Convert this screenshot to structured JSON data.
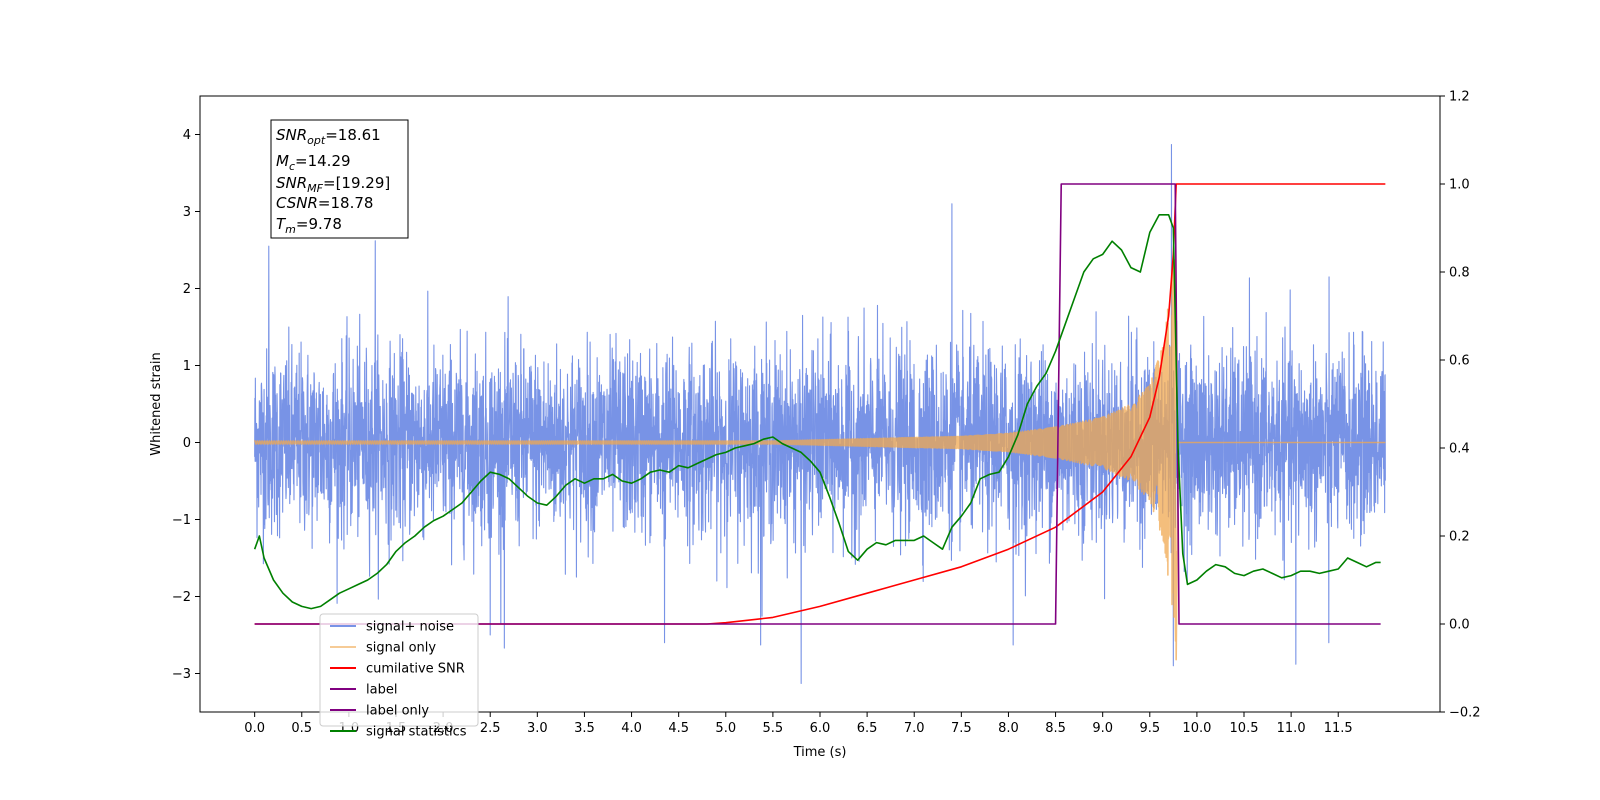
{
  "chart_data": {
    "type": "line",
    "xlabel": "Time (s)",
    "ylabel": "Whitened strain",
    "xlim": [
      -0.58,
      12.58
    ],
    "ylim": [
      -3.5,
      4.5
    ],
    "y2lim": [
      -0.2,
      1.2
    ],
    "x_ticks": [
      0.0,
      0.5,
      1.0,
      1.5,
      2.0,
      2.5,
      3.0,
      3.5,
      4.0,
      4.5,
      5.0,
      5.5,
      6.0,
      6.5,
      7.0,
      7.5,
      8.0,
      8.5,
      9.0,
      9.5,
      10.0,
      10.5,
      11.0,
      11.5
    ],
    "x_tick_labels": [
      "0.0",
      "0.5",
      "1.0",
      "1.5",
      "2.0",
      "2.5",
      "3.0",
      "3.5",
      "4.0",
      "4.5",
      "5.0",
      "5.5",
      "6.0",
      "6.5",
      "7.0",
      "7.5",
      "8.0",
      "8.5",
      "9.0",
      "9.5",
      "10.0",
      "10.5",
      "11.0",
      "11.5"
    ],
    "y_ticks": [
      -3,
      -2,
      -1,
      0,
      1,
      2,
      3,
      4
    ],
    "y_tick_labels": [
      "−3",
      "−2",
      "−1",
      "0",
      "1",
      "2",
      "3",
      "4"
    ],
    "y2_ticks": [
      -0.2,
      0.0,
      0.2,
      0.4,
      0.6,
      0.8,
      1.0,
      1.2
    ],
    "y2_tick_labels": [
      "−0.2",
      "0.0",
      "0.2",
      "0.4",
      "0.6",
      "0.8",
      "1.0",
      "1.2"
    ],
    "legend_position": "lower-left",
    "grid": false,
    "annotation": [
      {
        "base": "SNR",
        "sub": "opt",
        "value": "=18.61"
      },
      {
        "base": "M",
        "sub": "c",
        "value": "=14.29"
      },
      {
        "base": "SNR",
        "sub": "MF",
        "value": "=[19.29]"
      },
      {
        "base": "CSNR",
        "sub": "",
        "value": "=18.78"
      },
      {
        "base": "T",
        "sub": "m",
        "value": "=9.78"
      }
    ],
    "series": [
      {
        "name": "signal+ noise",
        "color": "#7893e6",
        "axis": "left",
        "kind": "noise",
        "x_range": [
          0.0,
          12.0
        ],
        "typical_amplitude": 1.0,
        "extremes": [
          {
            "x": 0.15,
            "y": 2.55
          },
          {
            "x": 1.28,
            "y": 2.62
          },
          {
            "x": 2.5,
            "y": -2.5
          },
          {
            "x": 2.65,
            "y": -2.67
          },
          {
            "x": 4.35,
            "y": -2.6
          },
          {
            "x": 5.37,
            "y": -2.63
          },
          {
            "x": 5.8,
            "y": -3.13
          },
          {
            "x": 7.4,
            "y": 3.1
          },
          {
            "x": 8.05,
            "y": -2.63
          },
          {
            "x": 9.73,
            "y": 3.87
          },
          {
            "x": 9.75,
            "y": -2.9
          },
          {
            "x": 11.05,
            "y": -2.88
          },
          {
            "x": 11.4,
            "y": -2.6
          }
        ]
      },
      {
        "name": "signal only",
        "color": "#f0a850",
        "axis": "left",
        "kind": "chirp",
        "merger_time": 9.78,
        "envelope": [
          {
            "x": 5.5,
            "y": 0.02
          },
          {
            "x": 6.5,
            "y": 0.05
          },
          {
            "x": 7.5,
            "y": 0.08
          },
          {
            "x": 8.0,
            "y": 0.12
          },
          {
            "x": 8.5,
            "y": 0.2
          },
          {
            "x": 9.0,
            "y": 0.33
          },
          {
            "x": 9.3,
            "y": 0.5
          },
          {
            "x": 9.5,
            "y": 0.75
          },
          {
            "x": 9.65,
            "y": 1.3
          },
          {
            "x": 9.75,
            "y": 2.4
          },
          {
            "x": 9.78,
            "y": 2.8
          }
        ],
        "min_value": -2.82
      },
      {
        "name": "cumilative SNR",
        "color": "#ff0000",
        "axis": "right",
        "x": [
          0.0,
          4.8,
          5.0,
          5.5,
          6.0,
          6.5,
          7.0,
          7.5,
          8.0,
          8.5,
          9.0,
          9.3,
          9.5,
          9.6,
          9.7,
          9.75,
          9.78,
          9.79,
          12.0
        ],
        "y": [
          0.0,
          0.0,
          0.003,
          0.015,
          0.04,
          0.07,
          0.1,
          0.13,
          0.17,
          0.22,
          0.3,
          0.38,
          0.47,
          0.56,
          0.7,
          0.84,
          1.0,
          1.0,
          1.0
        ]
      },
      {
        "name": "label",
        "color": "#800080",
        "axis": "right",
        "x": [
          0.0,
          8.5,
          8.56,
          9.77,
          9.81,
          11.95
        ],
        "y": [
          0.0,
          0.0,
          1.0,
          1.0,
          0.0,
          0.0
        ]
      },
      {
        "name": "label only",
        "color": "#800080",
        "axis": "right",
        "hidden_in_plot": true
      },
      {
        "name": "signal statistics",
        "color": "#008000",
        "axis": "right",
        "x": [
          0.0,
          0.05,
          0.1,
          0.2,
          0.3,
          0.4,
          0.5,
          0.6,
          0.7,
          0.8,
          0.9,
          1.0,
          1.1,
          1.2,
          1.3,
          1.4,
          1.5,
          1.6,
          1.7,
          1.8,
          1.9,
          2.0,
          2.1,
          2.2,
          2.3,
          2.4,
          2.5,
          2.6,
          2.7,
          2.8,
          2.9,
          3.0,
          3.1,
          3.2,
          3.3,
          3.4,
          3.5,
          3.6,
          3.7,
          3.8,
          3.9,
          4.0,
          4.1,
          4.2,
          4.3,
          4.4,
          4.5,
          4.6,
          4.7,
          4.8,
          4.9,
          5.0,
          5.1,
          5.2,
          5.3,
          5.4,
          5.5,
          5.6,
          5.7,
          5.8,
          5.9,
          6.0,
          6.1,
          6.2,
          6.3,
          6.4,
          6.5,
          6.6,
          6.7,
          6.8,
          6.9,
          7.0,
          7.1,
          7.2,
          7.3,
          7.4,
          7.5,
          7.6,
          7.7,
          7.8,
          7.9,
          8.0,
          8.1,
          8.2,
          8.3,
          8.4,
          8.5,
          8.6,
          8.7,
          8.8,
          8.9,
          9.0,
          9.1,
          9.2,
          9.3,
          9.4,
          9.5,
          9.6,
          9.7,
          9.75,
          9.8,
          9.85,
          9.9,
          10.0,
          10.1,
          10.2,
          10.3,
          10.4,
          10.5,
          10.6,
          10.7,
          10.8,
          10.9,
          11.0,
          11.1,
          11.2,
          11.3,
          11.4,
          11.5,
          11.6,
          11.7,
          11.8,
          11.9,
          11.95
        ],
        "y": [
          0.17,
          0.2,
          0.15,
          0.1,
          0.07,
          0.05,
          0.04,
          0.035,
          0.04,
          0.055,
          0.07,
          0.08,
          0.09,
          0.1,
          0.115,
          0.135,
          0.165,
          0.185,
          0.2,
          0.22,
          0.235,
          0.245,
          0.26,
          0.275,
          0.3,
          0.325,
          0.345,
          0.34,
          0.33,
          0.31,
          0.29,
          0.275,
          0.27,
          0.29,
          0.315,
          0.33,
          0.32,
          0.33,
          0.33,
          0.34,
          0.325,
          0.32,
          0.33,
          0.345,
          0.35,
          0.345,
          0.36,
          0.355,
          0.365,
          0.375,
          0.385,
          0.39,
          0.4,
          0.405,
          0.41,
          0.42,
          0.425,
          0.41,
          0.4,
          0.39,
          0.37,
          0.345,
          0.29,
          0.23,
          0.165,
          0.145,
          0.17,
          0.185,
          0.18,
          0.19,
          0.19,
          0.19,
          0.2,
          0.185,
          0.17,
          0.22,
          0.245,
          0.275,
          0.33,
          0.34,
          0.345,
          0.38,
          0.43,
          0.5,
          0.54,
          0.57,
          0.62,
          0.68,
          0.74,
          0.8,
          0.83,
          0.84,
          0.87,
          0.85,
          0.81,
          0.8,
          0.89,
          0.93,
          0.93,
          0.9,
          0.4,
          0.16,
          0.09,
          0.1,
          0.12,
          0.135,
          0.13,
          0.115,
          0.11,
          0.12,
          0.125,
          0.115,
          0.105,
          0.11,
          0.12,
          0.12,
          0.115,
          0.12,
          0.125,
          0.15,
          0.14,
          0.13,
          0.14,
          0.14
        ]
      }
    ]
  }
}
